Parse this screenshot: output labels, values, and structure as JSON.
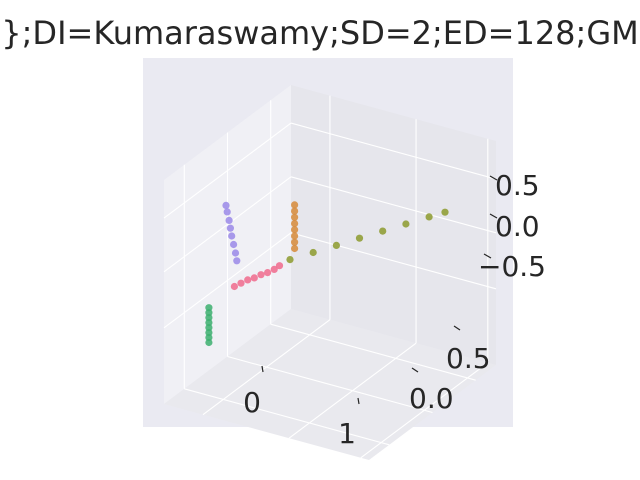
{
  "chart_data": {
    "type": "scatter",
    "subtype": "3d",
    "title": "};DI=Kumaraswamy;SD=2;ED=128;GM",
    "xlabel": "",
    "ylabel": "",
    "zlabel": "",
    "grid": true,
    "legend": "none",
    "axes": {
      "x": {
        "ticks": [
          "0",
          "1"
        ],
        "range": [
          -0.5,
          1.5
        ]
      },
      "y": {
        "ticks": [
          "0.0",
          "0.5"
        ],
        "range": [
          -0.5,
          1.0
        ]
      },
      "z": {
        "ticks": [
          "0.5",
          "0.0",
          "−0.5"
        ],
        "range": [
          -0.9,
          0.9
        ]
      }
    },
    "series": [
      {
        "color": "#d68a3a",
        "points": [
          [
            0.05,
            0.2,
            0.35
          ],
          [
            0.05,
            0.2,
            0.4
          ],
          [
            0.05,
            0.2,
            0.45
          ],
          [
            0.05,
            0.2,
            0.5
          ],
          [
            0.05,
            0.2,
            0.55
          ],
          [
            0.05,
            0.2,
            0.6
          ],
          [
            0.05,
            0.2,
            0.65
          ],
          [
            0.05,
            0.2,
            0.7
          ]
        ]
      },
      {
        "color": "#9a88e8",
        "points": [
          [
            0.0,
            -0.2,
            0.15
          ],
          [
            -0.02,
            -0.2,
            0.22
          ],
          [
            -0.05,
            -0.2,
            0.3
          ],
          [
            -0.08,
            -0.2,
            0.38
          ],
          [
            -0.1,
            -0.2,
            0.45
          ],
          [
            -0.12,
            -0.2,
            0.52
          ],
          [
            -0.15,
            -0.2,
            0.6
          ],
          [
            -0.17,
            -0.2,
            0.66
          ]
        ]
      },
      {
        "color": "#f06a8c",
        "points": [
          [
            -0.08,
            -0.18,
            -0.02
          ],
          [
            -0.04,
            -0.15,
            0.0
          ],
          [
            0.0,
            -0.12,
            0.02
          ],
          [
            0.04,
            -0.09,
            0.03
          ],
          [
            0.08,
            -0.06,
            0.05
          ],
          [
            0.12,
            -0.03,
            0.06
          ],
          [
            0.16,
            0.0,
            0.08
          ],
          [
            0.2,
            0.02,
            0.1
          ]
        ]
      },
      {
        "color": "#3caf6e",
        "points": [
          [
            0.1,
            -0.45,
            -0.62
          ],
          [
            0.1,
            -0.45,
            -0.58
          ],
          [
            0.1,
            -0.45,
            -0.54
          ],
          [
            0.1,
            -0.45,
            -0.5
          ],
          [
            0.1,
            -0.45,
            -0.46
          ],
          [
            0.1,
            -0.45,
            -0.42
          ],
          [
            0.1,
            -0.45,
            -0.38
          ],
          [
            0.1,
            -0.45,
            -0.34
          ]
        ]
      },
      {
        "color": "#8c9a2e",
        "points": [
          [
            0.3,
            0.05,
            0.12
          ],
          [
            0.45,
            0.15,
            0.15
          ],
          [
            0.6,
            0.25,
            0.18
          ],
          [
            0.75,
            0.35,
            0.21
          ],
          [
            0.9,
            0.45,
            0.24
          ],
          [
            1.05,
            0.55,
            0.27
          ],
          [
            1.2,
            0.65,
            0.3
          ],
          [
            1.3,
            0.72,
            0.32
          ]
        ]
      }
    ]
  }
}
